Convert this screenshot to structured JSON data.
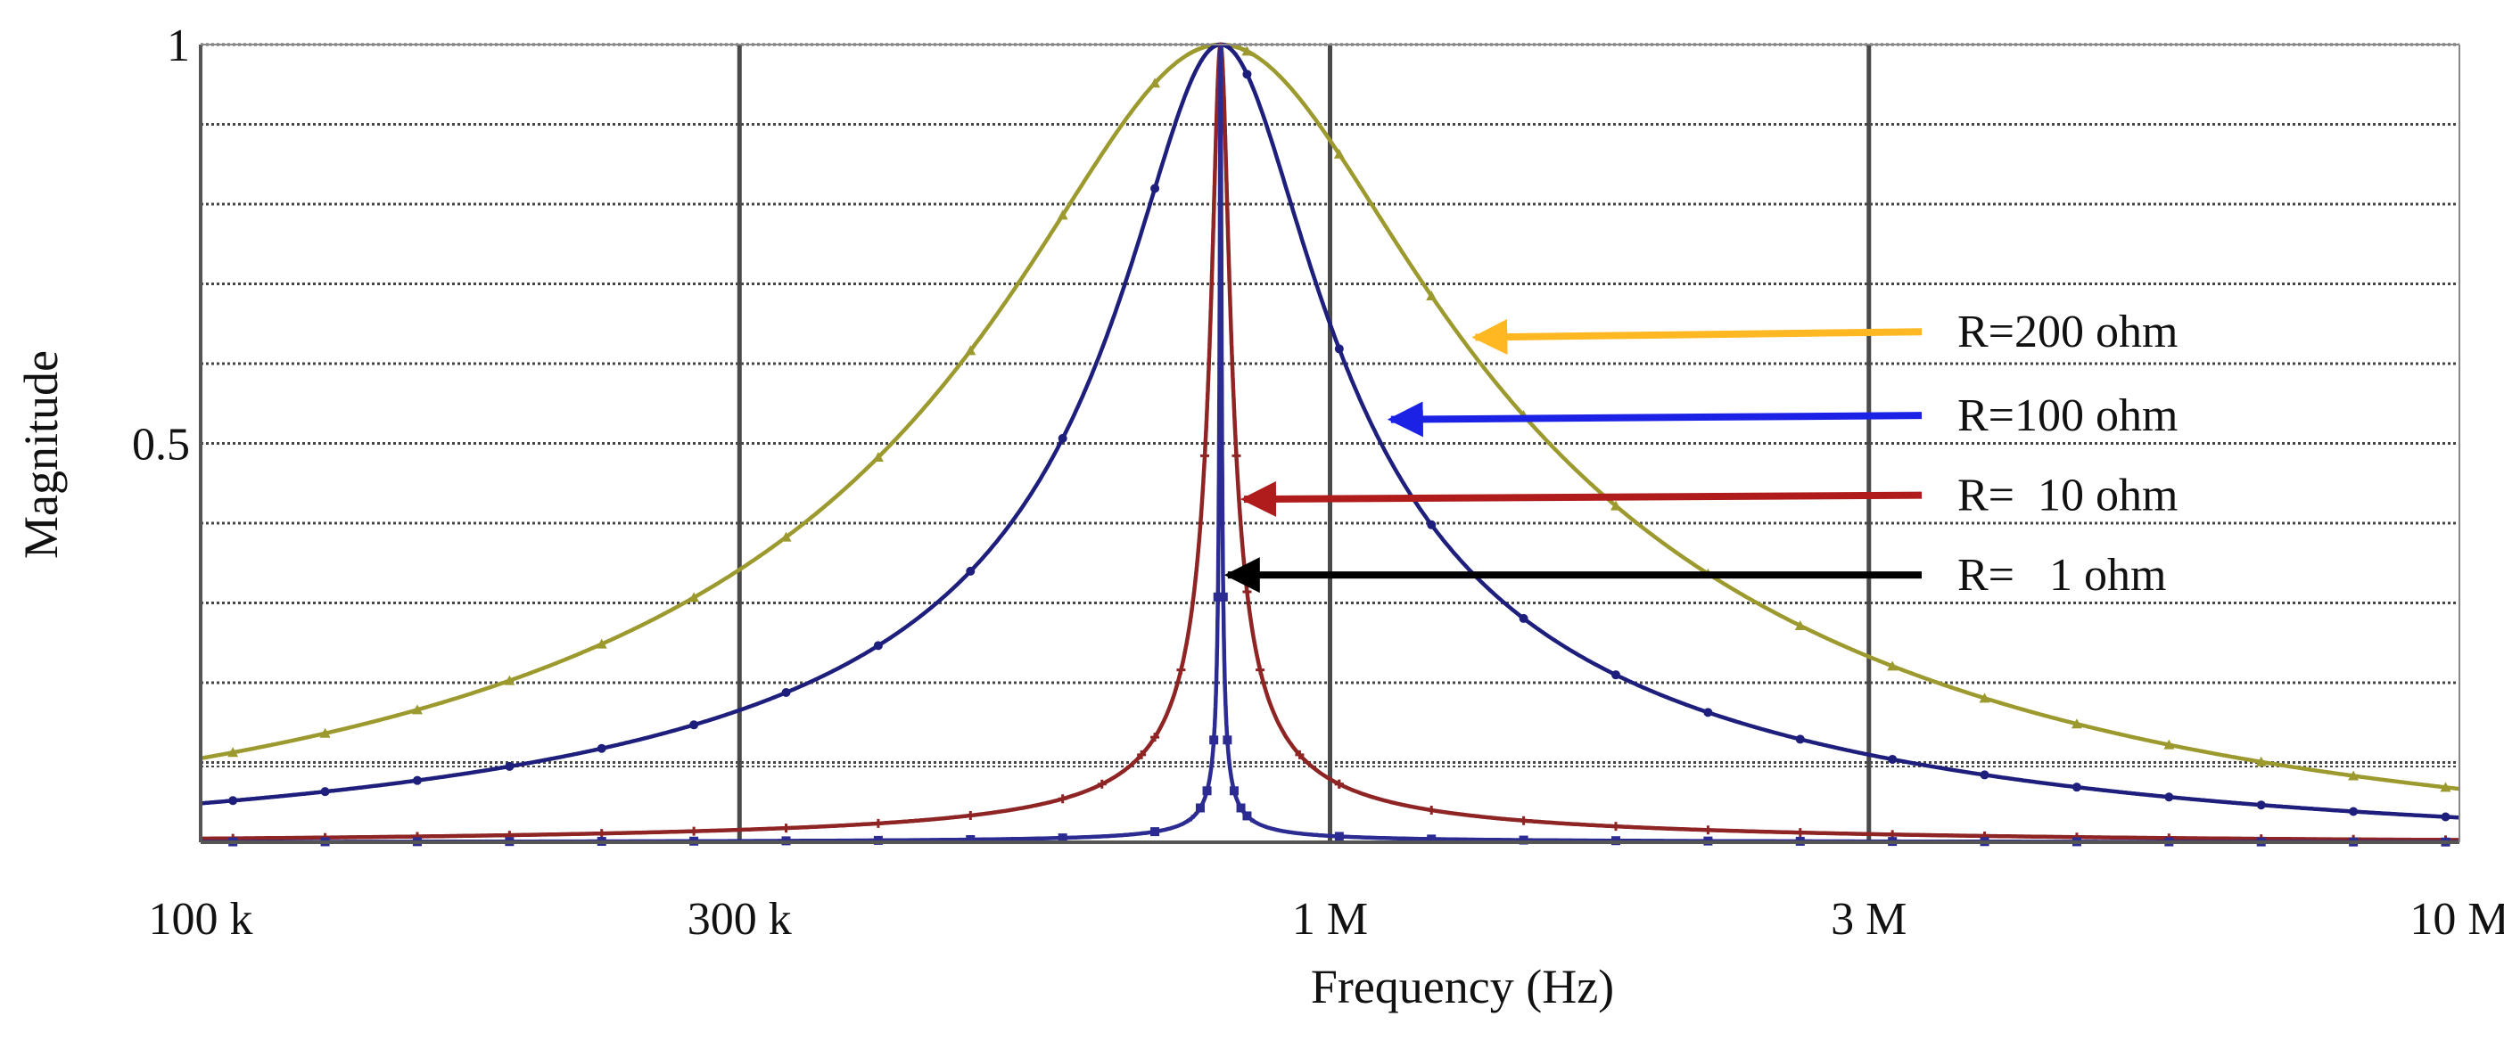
{
  "chart_data": {
    "type": "line",
    "title": "",
    "xlabel": "Frequency (Hz)",
    "ylabel": "Magnitude",
    "xscale": "log",
    "xlim": [
      100000,
      10000000
    ],
    "ylim": [
      0,
      1
    ],
    "grid": true,
    "resonance_hz": 800000,
    "x_ticks": [
      {
        "value": 100000,
        "label": "100 k"
      },
      {
        "value": 300000,
        "label": "300 k"
      },
      {
        "value": 1000000,
        "label": "1 M"
      },
      {
        "value": 3000000,
        "label": "3 M"
      },
      {
        "value": 10000000,
        "label": "10 M"
      }
    ],
    "y_ticks": [
      {
        "value": 1,
        "label": "1"
      },
      {
        "value": 0.5,
        "label": "0.5"
      }
    ],
    "y_gridlines": [
      0.1,
      0.2,
      0.3,
      0.4,
      0.5,
      0.6,
      0.7,
      0.8,
      0.9,
      1.0
    ],
    "series": [
      {
        "name": "R=200 ohm",
        "q": 1.2,
        "color": "#9c9a2e",
        "marker": "triangle",
        "arrow_color": "#ffb822",
        "label_y": 0.64
      },
      {
        "name": "R=100 ohm",
        "q": 2.6,
        "color": "#1e1e7c",
        "marker": "circle",
        "arrow_color": "#1c21e6",
        "label_y": 0.535
      },
      {
        "name": "R=  10 ohm",
        "q": 28,
        "color": "#8e2424",
        "marker": "cross",
        "arrow_color": "#b01b1b",
        "label_y": 0.435
      },
      {
        "name": "R=   1 ohm",
        "q": 280,
        "color": "#2b2b92",
        "marker": "square",
        "arrow_color": "#000000",
        "label_y": 0.335
      }
    ],
    "annotations": [
      {
        "text": "R=200 ohm",
        "target": {
          "x": 1330000,
          "y": 0.633
        }
      },
      {
        "text": "R=100 ohm",
        "target": {
          "x": 1120000,
          "y": 0.53
        }
      },
      {
        "text": "R=  10 ohm",
        "target": {
          "x": 830000,
          "y": 0.43
        }
      },
      {
        "text": "R=   1 ohm",
        "target": {
          "x": 803000,
          "y": 0.335
        }
      }
    ]
  }
}
